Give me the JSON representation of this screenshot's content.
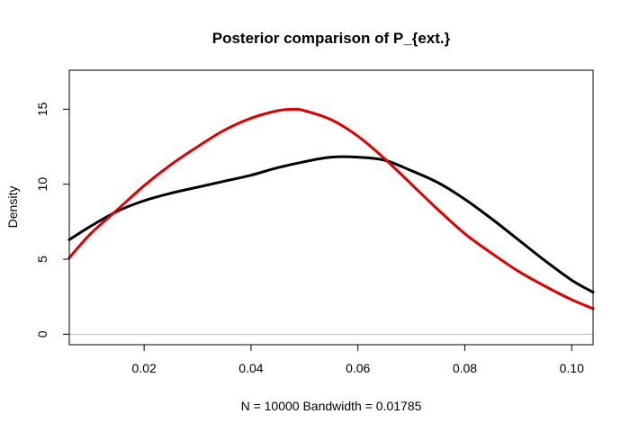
{
  "chart_data": {
    "type": "line",
    "title": "Posterior comparison of P_{ext.}",
    "xlabel": "N = 10000   Bandwidth = 0.01785",
    "ylabel": "Density",
    "xlim": [
      0.006,
      0.104
    ],
    "ylim": [
      -0.7,
      17.6
    ],
    "x_ticks": [
      0.02,
      0.04,
      0.06,
      0.08,
      0.1
    ],
    "x_tick_labels": [
      "0.02",
      "0.04",
      "0.06",
      "0.08",
      "0.10"
    ],
    "y_ticks": [
      0,
      5,
      10,
      15
    ],
    "y_tick_labels": [
      "0",
      "5",
      "10",
      "15"
    ],
    "zero_baseline": true,
    "grid": false,
    "series": [
      {
        "color": "#000000",
        "x": [
          0.006,
          0.01,
          0.015,
          0.02,
          0.025,
          0.03,
          0.035,
          0.04,
          0.045,
          0.05,
          0.055,
          0.06,
          0.065,
          0.07,
          0.075,
          0.08,
          0.085,
          0.09,
          0.095,
          0.1,
          0.104
        ],
        "y": [
          6.3,
          7.2,
          8.2,
          8.9,
          9.4,
          9.8,
          10.2,
          10.6,
          11.1,
          11.5,
          11.8,
          11.8,
          11.6,
          10.9,
          10.1,
          9.0,
          7.7,
          6.3,
          4.9,
          3.6,
          2.8
        ]
      },
      {
        "color": "#dd0000",
        "x": [
          0.006,
          0.01,
          0.015,
          0.02,
          0.025,
          0.03,
          0.035,
          0.04,
          0.045,
          0.048,
          0.05,
          0.055,
          0.06,
          0.065,
          0.07,
          0.075,
          0.08,
          0.085,
          0.09,
          0.095,
          0.1,
          0.104
        ],
        "y": [
          5.1,
          6.7,
          8.3,
          9.9,
          11.3,
          12.5,
          13.6,
          14.4,
          14.9,
          15.0,
          14.9,
          14.3,
          13.2,
          11.7,
          10.0,
          8.3,
          6.7,
          5.4,
          4.2,
          3.2,
          2.3,
          1.7
        ]
      }
    ]
  }
}
